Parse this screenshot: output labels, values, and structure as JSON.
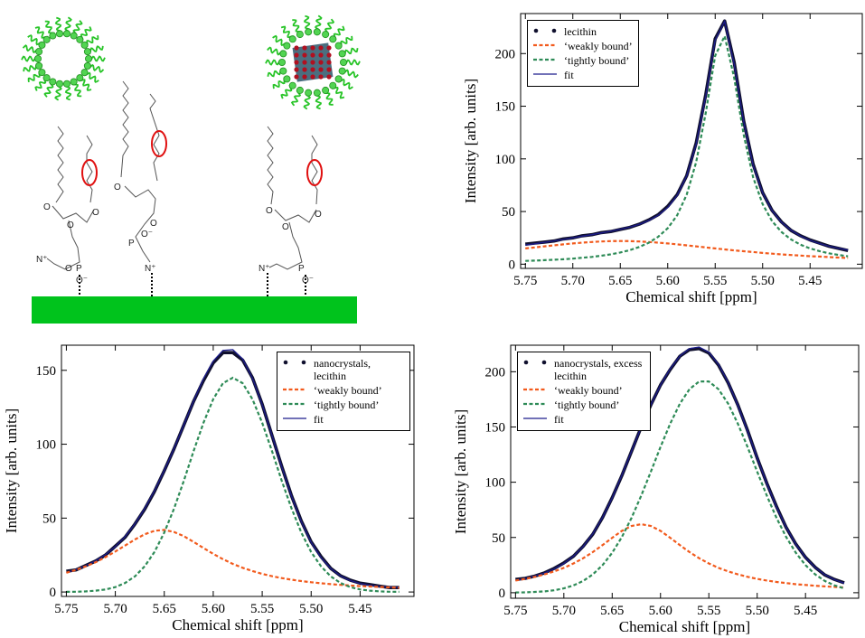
{
  "diagram": {
    "labels": [
      "O",
      "P",
      "N⁺",
      "O⁻"
    ]
  },
  "chart_data": [
    {
      "type": "line",
      "xlabel": "Chemical shift [ppm]",
      "ylabel": "Intensity [arb. units]",
      "legend": "upper left",
      "xlim": [
        5.755,
        5.395
      ],
      "ylim": [
        -4,
        238
      ],
      "xticks": [
        5.75,
        {
          "value": 5.7,
          "label": "5.70"
        },
        5.65,
        {
          "value": 5.6,
          "label": "5.60"
        },
        5.55,
        {
          "value": 5.5,
          "label": "5.50"
        },
        5.45
      ],
      "yticks": [
        0,
        50,
        100,
        150,
        200
      ],
      "x": [
        5.75,
        5.74,
        5.73,
        5.72,
        5.71,
        5.7,
        5.69,
        5.68,
        5.67,
        5.66,
        5.65,
        5.64,
        5.63,
        5.62,
        5.61,
        5.6,
        5.59,
        5.58,
        5.57,
        5.56,
        5.55,
        5.54,
        5.53,
        5.52,
        5.51,
        5.5,
        5.49,
        5.48,
        5.47,
        5.46,
        5.45,
        5.44,
        5.43,
        5.42,
        5.41
      ],
      "series": [
        {
          "name": "lecithin",
          "style": "dots",
          "color": "#10102e",
          "values": [
            19,
            20,
            21,
            22,
            24,
            25,
            27,
            28,
            30,
            31,
            33,
            35,
            38,
            42,
            47,
            55,
            66,
            84,
            115,
            161,
            214,
            231,
            192,
            136,
            95,
            68,
            51,
            40,
            32,
            27,
            23,
            20,
            17,
            15,
            13
          ]
        },
        {
          "name": "‘weakly bound’",
          "style": "dashed",
          "color": "#f25a1c",
          "values": [
            15.0,
            15.9,
            16.9,
            17.9,
            18.8,
            19.7,
            20.5,
            21.1,
            21.6,
            21.9,
            22.0,
            21.9,
            21.6,
            21.1,
            20.5,
            19.7,
            18.8,
            17.9,
            16.9,
            15.9,
            15.0,
            14.0,
            13.1,
            12.3,
            11.5,
            10.7,
            10.0,
            9.3,
            8.7,
            8.2,
            7.6,
            7.2,
            6.7,
            6.3,
            5.9
          ]
        },
        {
          "name": "‘tightly bound’",
          "style": "dashed",
          "color": "#2e8b57",
          "values": [
            3.1,
            3.4,
            3.8,
            4.2,
            4.7,
            5.3,
            6.1,
            6.9,
            8.0,
            9.4,
            11.1,
            13.3,
            16.3,
            20.3,
            26.0,
            34.2,
            46.5,
            65.9,
            96.9,
            143.6,
            197.8,
            216.6,
            177.2,
            122.9,
            82.6,
            57.1,
            40.9,
            30.5,
            23.5,
            18.5,
            15.0,
            12.4,
            10.3,
            8.8,
            7.5
          ]
        },
        {
          "name": "fit",
          "style": "solid",
          "color": "#1c1c8c",
          "values": [
            18.1,
            19.3,
            20.7,
            22.1,
            23.5,
            25.0,
            26.6,
            28.0,
            29.6,
            31.3,
            33.1,
            35.2,
            37.9,
            41.4,
            46.5,
            53.9,
            65.3,
            83.8,
            113.8,
            159.5,
            212.8,
            230.6,
            190.3,
            135.2,
            94.1,
            67.8,
            50.9,
            39.8,
            32.2,
            26.7,
            22.6,
            19.6,
            17.0,
            15.1,
            13.4
          ]
        }
      ]
    },
    {
      "type": "line",
      "xlabel": "Chemical shift [ppm]",
      "ylabel": "Intensity [arb. units]",
      "legend": "upper right",
      "xlim": [
        5.755,
        5.395
      ],
      "ylim": [
        -3,
        167
      ],
      "xticks": [
        5.75,
        {
          "value": 5.7,
          "label": "5.70"
        },
        5.65,
        {
          "value": 5.6,
          "label": "5.60"
        },
        5.55,
        {
          "value": 5.5,
          "label": "5.50"
        },
        5.45
      ],
      "yticks": [
        0,
        50,
        100,
        150
      ],
      "x": [
        5.75,
        5.74,
        5.73,
        5.72,
        5.71,
        5.7,
        5.69,
        5.68,
        5.67,
        5.66,
        5.65,
        5.64,
        5.63,
        5.62,
        5.61,
        5.6,
        5.59,
        5.58,
        5.57,
        5.56,
        5.55,
        5.54,
        5.53,
        5.52,
        5.51,
        5.5,
        5.49,
        5.48,
        5.47,
        5.46,
        5.45,
        5.44,
        5.43,
        5.42,
        5.41
      ],
      "series": [
        {
          "name": "nanocrystals, lecithin",
          "style": "dots",
          "color": "#10102e",
          "values": [
            14,
            15,
            18,
            21,
            25,
            31,
            37,
            46,
            56,
            68,
            82,
            97,
            113,
            129,
            143,
            155,
            162,
            162,
            157,
            145,
            127,
            106,
            85,
            65,
            48,
            34,
            24,
            16,
            11,
            8,
            6,
            5,
            4,
            3,
            3
          ]
        },
        {
          "name": "‘weakly bound’",
          "style": "dashed",
          "color": "#f25a1c",
          "values": [
            13.0,
            15.0,
            17.4,
            20.2,
            23.6,
            27.4,
            31.4,
            35.5,
            39.1,
            41.4,
            42.0,
            40.6,
            37.8,
            33.9,
            29.8,
            25.8,
            22.2,
            19.0,
            16.4,
            14.2,
            12.3,
            10.7,
            9.4,
            8.3,
            7.4,
            6.6,
            5.9,
            5.3,
            4.8,
            4.4,
            4.0,
            3.7,
            3.4,
            3.1,
            2.9
          ]
        },
        {
          "name": "‘tightly bound’",
          "style": "dashed",
          "color": "#2e8b57",
          "values": [
            0.1,
            0.2,
            0.4,
            0.9,
            1.7,
            3.3,
            6.1,
            10.6,
            17.4,
            27.1,
            40.2,
            56.5,
            75.3,
            95.4,
            114.5,
            130.5,
            141.3,
            145.0,
            141.3,
            130.5,
            114.5,
            95.4,
            75.3,
            56.5,
            40.2,
            27.1,
            17.4,
            10.6,
            6.1,
            3.3,
            1.7,
            0.9,
            0.4,
            0.2,
            0.1
          ]
        },
        {
          "name": "fit",
          "style": "solid",
          "color": "#1c1c8c",
          "values": [
            13.1,
            15.2,
            17.8,
            21.1,
            25.3,
            30.7,
            37.5,
            46.1,
            56.5,
            68.5,
            82.2,
            97.1,
            113.1,
            129.3,
            144.3,
            156.3,
            163.5,
            164.0,
            157.7,
            144.7,
            126.8,
            106.1,
            84.7,
            64.8,
            47.6,
            33.7,
            23.3,
            15.9,
            10.9,
            7.7,
            5.7,
            4.6,
            3.8,
            3.3,
            3.0
          ]
        }
      ]
    },
    {
      "type": "line",
      "xlabel": "Chemical shift [ppm]",
      "ylabel": "Intensity [arb. units]",
      "legend": "upper left",
      "xlim": [
        5.755,
        5.395
      ],
      "ylim": [
        -5,
        224
      ],
      "xticks": [
        5.75,
        {
          "value": 5.7,
          "label": "5.70"
        },
        5.65,
        {
          "value": 5.6,
          "label": "5.60"
        },
        5.55,
        {
          "value": 5.5,
          "label": "5.50"
        },
        5.45
      ],
      "yticks": [
        0,
        50,
        100,
        150,
        200
      ],
      "x": [
        5.75,
        5.74,
        5.73,
        5.72,
        5.71,
        5.7,
        5.69,
        5.68,
        5.67,
        5.66,
        5.65,
        5.64,
        5.63,
        5.62,
        5.61,
        5.6,
        5.59,
        5.58,
        5.57,
        5.56,
        5.55,
        5.54,
        5.53,
        5.52,
        5.51,
        5.5,
        5.49,
        5.48,
        5.47,
        5.46,
        5.45,
        5.44,
        5.43,
        5.42,
        5.41
      ],
      "series": [
        {
          "name": "nanocrystals, excess lecithin",
          "style": "dots",
          "color": "#10102e",
          "values": [
            12,
            13,
            15,
            18,
            22,
            27,
            33,
            42,
            53,
            68,
            86,
            106,
            128,
            150,
            170,
            188,
            202,
            214,
            220,
            221,
            217,
            206,
            190,
            170,
            147,
            122,
            99,
            78,
            59,
            44,
            32,
            23,
            16,
            12,
            9
          ]
        },
        {
          "name": "‘weakly bound’",
          "style": "dashed",
          "color": "#f25a1c",
          "values": [
            11.0,
            12.5,
            14.4,
            16.6,
            19.3,
            22.5,
            26.5,
            31.2,
            36.8,
            43.1,
            49.7,
            55.9,
            60.4,
            62.0,
            60.4,
            55.9,
            49.7,
            43.1,
            36.8,
            31.2,
            26.5,
            22.5,
            19.3,
            16.6,
            14.4,
            12.5,
            11.0,
            9.7,
            8.7,
            7.7,
            7.0,
            6.3,
            5.7,
            5.2,
            4.7
          ]
        },
        {
          "name": "‘tightly bound’",
          "style": "dashed",
          "color": "#2e8b57",
          "values": [
            0.2,
            0.3,
            0.7,
            1.2,
            2.2,
            3.9,
            6.6,
            10.6,
            16.6,
            24.9,
            36.1,
            50.4,
            67.7,
            87.8,
            109.6,
            132.0,
            153.0,
            171.1,
            184.2,
            191.2,
            191.2,
            184.2,
            171.1,
            153.0,
            132.0,
            109.6,
            87.8,
            67.7,
            50.4,
            36.1,
            24.9,
            16.6,
            10.6,
            6.6,
            3.9
          ]
        },
        {
          "name": "fit",
          "style": "solid",
          "color": "#1c1c8c",
          "values": [
            11.2,
            12.8,
            15.1,
            17.8,
            21.5,
            26.4,
            33.1,
            41.8,
            53.4,
            68.0,
            85.8,
            106.3,
            128.1,
            149.8,
            170.0,
            187.9,
            202.7,
            214.2,
            221.0,
            222.4,
            217.7,
            206.7,
            190.4,
            169.6,
            146.4,
            122.1,
            98.8,
            77.4,
            59.1,
            43.8,
            31.9,
            22.9,
            16.3,
            11.8,
            8.6
          ]
        }
      ]
    }
  ]
}
